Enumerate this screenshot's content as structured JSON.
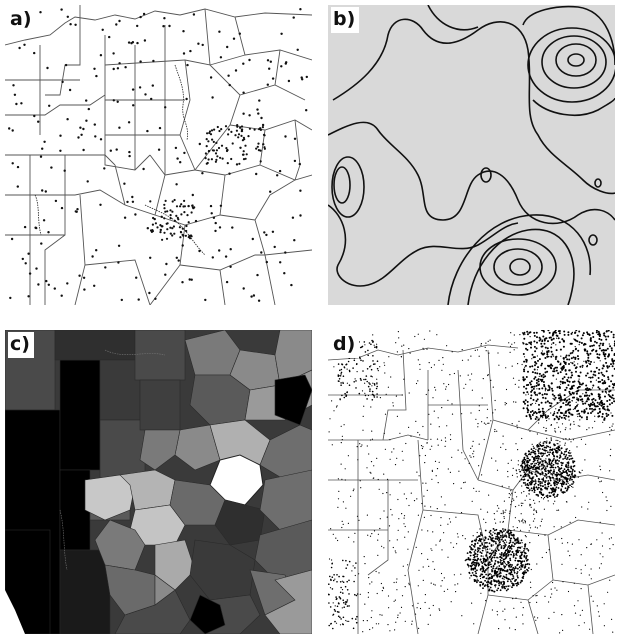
{
  "panels": [
    {
      "label": "a)",
      "content": "county-boundaries-with-point-sites"
    },
    {
      "label": "b)",
      "content": "interpolated-contour-surface"
    },
    {
      "label": "c)",
      "content": "grayscale-choropleth-by-county"
    },
    {
      "label": "d)",
      "content": "dot-density-over-county-boundaries"
    }
  ],
  "colors": {
    "background": "#ffffff",
    "boundary": "#555555",
    "contour_fill": "#d9d9d9",
    "contour_line": "#111111",
    "choropleth_shades": [
      "#000000",
      "#2f2f2f",
      "#4a4a4a",
      "#6e6e6e",
      "#9a9a9a",
      "#c4c4c4",
      "#ffffff"
    ]
  }
}
